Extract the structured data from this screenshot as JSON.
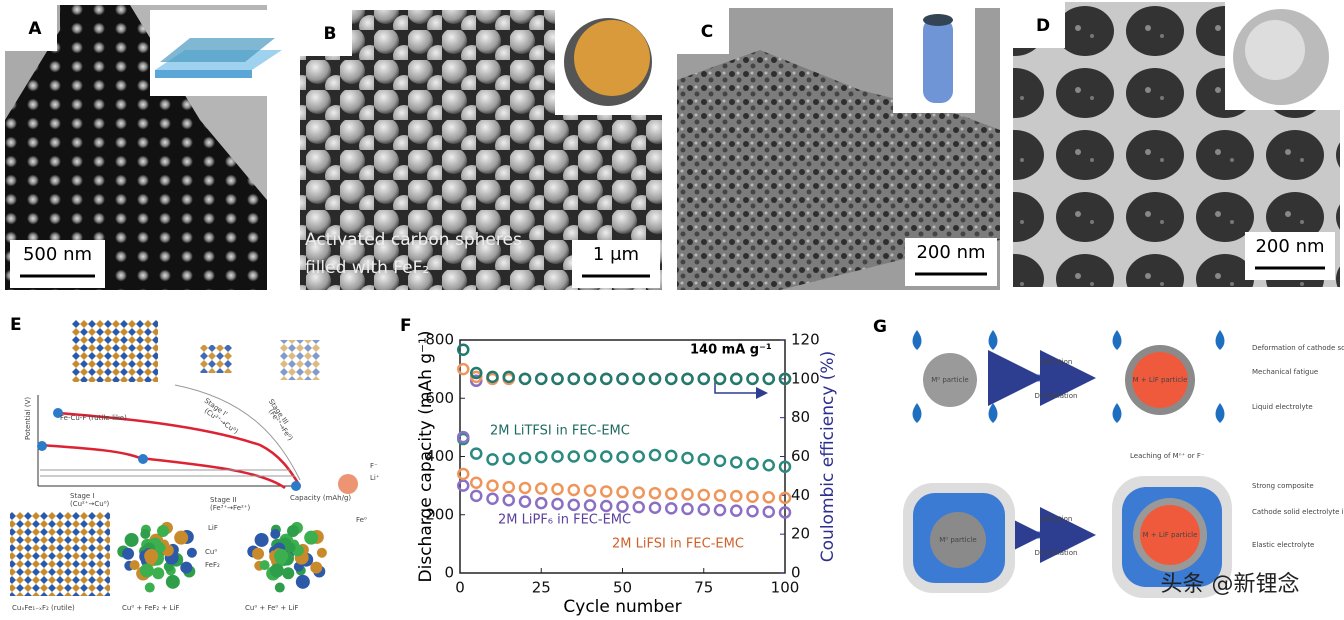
{
  "panels": [
    {
      "label": "A",
      "scale_bar": "500 nm"
    },
    {
      "label": "B",
      "scale_bar": "1 μm",
      "caption": [
        "Activated carbon spheres",
        "filled with FeF₂"
      ]
    },
    {
      "label": "C",
      "scale_bar": "200 nm"
    },
    {
      "label": "D",
      "scale_bar": "200 nm"
    }
  ],
  "panel_e": {
    "label": "E",
    "labels": [
      "Fe-Cu-F (rutile-like)",
      "Potential (V)",
      "Stage I'",
      "(Cu²⁺→Cu⁰)",
      "Stage III",
      "(Fe²⁺→Fe⁰)",
      "Stage I",
      "(Cu²⁺→Cu⁰)",
      "Stage II",
      "(Fe³⁺→Fe²⁺)",
      "Capacity (mAh/g)",
      "LiF",
      "Cu⁰",
      "FeF₂",
      "Fe⁰",
      "F⁻",
      "Li⁺",
      "CuₓFe₁₋ₓF₂ (rutile)",
      "Cu⁰ + FeF₂ + LiF",
      "Cu⁰ + Fe⁰ + LiF"
    ]
  },
  "chart_data": {
    "type": "scatter",
    "panel_label": "F",
    "x_label": "Cycle number",
    "y_label": "Discharge capacity (mAh g⁻¹)",
    "y2_label": "Coulombic efficiency (%)",
    "annotation": "140 mA g⁻¹",
    "x": [
      1,
      5,
      10,
      15,
      20,
      25,
      30,
      35,
      40,
      45,
      50,
      55,
      60,
      65,
      70,
      75,
      80,
      85,
      90,
      95,
      100
    ],
    "xlim": [
      0,
      100
    ],
    "xticks": [
      0,
      25,
      50,
      75,
      100
    ],
    "ylim": [
      0,
      800
    ],
    "yticks": [
      0,
      200,
      400,
      600,
      800
    ],
    "y2lim": [
      0,
      120
    ],
    "y2ticks": [
      0,
      20,
      40,
      60,
      80,
      100,
      120
    ],
    "series": [
      {
        "name": "2M LiTFSI in FEC-EMC",
        "color": "#2a8a80",
        "values": [
          460,
          410,
          390,
          392,
          395,
          398,
          400,
          400,
          402,
          400,
          398,
          400,
          405,
          402,
          395,
          390,
          385,
          380,
          375,
          370,
          365
        ]
      },
      {
        "name": "2M LiPF₆ in FEC-EMC",
        "color": "#8a6fc4",
        "values": [
          300,
          265,
          255,
          250,
          245,
          240,
          237,
          234,
          232,
          230,
          228,
          226,
          224,
          222,
          220,
          218,
          216,
          214,
          212,
          210,
          208
        ]
      },
      {
        "name": "2M LiFSI in FEC-EMC",
        "color": "#f0955a",
        "values": [
          340,
          310,
          300,
          295,
          292,
          290,
          288,
          285,
          283,
          280,
          278,
          276,
          274,
          272,
          270,
          268,
          266,
          264,
          262,
          260,
          258
        ]
      },
      {
        "axis": "y2",
        "color": "#8a6fc4",
        "values": [
          70,
          99,
          100,
          100,
          100,
          100,
          100,
          100,
          100,
          100,
          100,
          100,
          100,
          100,
          100,
          100,
          100,
          100,
          100,
          100,
          100
        ]
      },
      {
        "axis": "y2",
        "color": "#f0955a",
        "values": [
          105,
          101,
          100,
          100,
          100,
          100,
          100,
          100,
          100,
          100,
          100,
          100,
          100,
          100,
          100,
          100,
          100,
          100,
          100,
          100,
          100
        ]
      },
      {
        "axis": "y2",
        "color": "#1f7a70",
        "values": [
          115,
          103,
          101,
          101,
          100,
          100,
          100,
          100,
          100,
          100,
          100,
          100,
          100,
          100,
          100,
          100,
          100,
          100,
          100,
          100,
          100
        ]
      }
    ],
    "y2_color": "#2d2f8f"
  },
  "panel_g": {
    "label": "G",
    "labels": [
      "M⁰ particle",
      "Lithiation",
      "De-lithiation",
      "M + LiF particle",
      "Deformation of cathode solid electrolyte interface",
      "Mechanical fatigue",
      "Liquid electrolyte",
      "Leaching of Mⁿ⁺ or F⁻",
      "M⁰ particle",
      "Lithiation",
      "De-lithiation",
      "M + LiF particle",
      "Strong composite",
      "Cathode solid electrolyte interface",
      "Elastic electrolyte"
    ]
  },
  "watermark": "头条 @新锂念"
}
